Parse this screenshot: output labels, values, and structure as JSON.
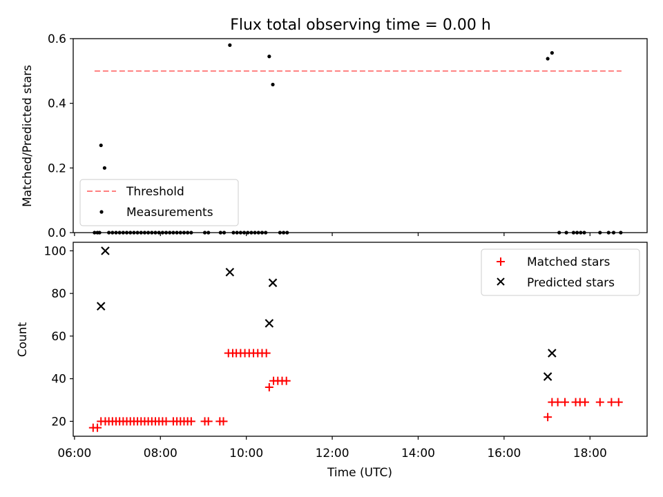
{
  "title": "Flux total observing time = 0.00 h",
  "colors": {
    "threshold": "#ff7f7f",
    "measurements": "#000000",
    "matched": "#ff0000",
    "predicted": "#000000"
  },
  "chart_data": [
    {
      "type": "scatter",
      "ylabel": "Matched/Predicted stars",
      "ylim": [
        0,
        0.6
      ],
      "yticks": [
        "0.0",
        "0.2",
        "0.4",
        "0.6"
      ],
      "xlim_hours": [
        5.97,
        19.33
      ],
      "grid": false,
      "legend_position": "lower-left",
      "legend": [
        "Threshold",
        "Measurements"
      ],
      "threshold": {
        "name": "Threshold",
        "value": 0.5,
        "x_range": [
          "06:28",
          "18:44"
        ]
      },
      "series": [
        {
          "name": "Measurements",
          "points": [
            [
              "06:28",
              0
            ],
            [
              "06:32",
              0
            ],
            [
              "06:35",
              0
            ],
            [
              "06:37",
              0.27
            ],
            [
              "06:42",
              0.2
            ],
            [
              "06:48",
              0
            ],
            [
              "06:53",
              0
            ],
            [
              "06:58",
              0
            ],
            [
              "07:03",
              0
            ],
            [
              "07:08",
              0
            ],
            [
              "07:13",
              0
            ],
            [
              "07:18",
              0
            ],
            [
              "07:23",
              0
            ],
            [
              "07:28",
              0
            ],
            [
              "07:33",
              0
            ],
            [
              "07:38",
              0
            ],
            [
              "07:43",
              0
            ],
            [
              "07:48",
              0
            ],
            [
              "07:53",
              0
            ],
            [
              "07:58",
              0
            ],
            [
              "08:03",
              0
            ],
            [
              "08:08",
              0
            ],
            [
              "08:13",
              0
            ],
            [
              "08:18",
              0
            ],
            [
              "08:23",
              0
            ],
            [
              "08:28",
              0
            ],
            [
              "08:33",
              0
            ],
            [
              "08:38",
              0
            ],
            [
              "08:43",
              0
            ],
            [
              "09:02",
              0
            ],
            [
              "09:07",
              0
            ],
            [
              "09:24",
              0
            ],
            [
              "09:29",
              0
            ],
            [
              "09:37",
              0.58
            ],
            [
              "09:42",
              0
            ],
            [
              "09:47",
              0
            ],
            [
              "09:52",
              0
            ],
            [
              "09:57",
              0
            ],
            [
              "10:02",
              0
            ],
            [
              "10:07",
              0
            ],
            [
              "10:12",
              0
            ],
            [
              "10:17",
              0
            ],
            [
              "10:22",
              0
            ],
            [
              "10:27",
              0
            ],
            [
              "10:32",
              0.545
            ],
            [
              "10:37",
              0.458
            ],
            [
              "10:47",
              0
            ],
            [
              "10:52",
              0
            ],
            [
              "10:57",
              0
            ],
            [
              "17:01",
              0.538
            ],
            [
              "17:07",
              0.556
            ],
            [
              "17:17",
              0
            ],
            [
              "17:27",
              0
            ],
            [
              "17:37",
              0
            ],
            [
              "17:42",
              0
            ],
            [
              "17:47",
              0
            ],
            [
              "17:52",
              0
            ],
            [
              "18:14",
              0
            ],
            [
              "18:26",
              0
            ],
            [
              "18:33",
              0
            ],
            [
              "18:43",
              0
            ]
          ]
        }
      ]
    },
    {
      "type": "scatter",
      "xlabel": "Time (UTC)",
      "ylabel": "Count",
      "xlim_hours": [
        5.97,
        19.33
      ],
      "xticks": [
        "06:00",
        "08:00",
        "10:00",
        "12:00",
        "14:00",
        "16:00",
        "18:00"
      ],
      "ylim": [
        13,
        104
      ],
      "yticks": [
        "20",
        "40",
        "60",
        "80",
        "100"
      ],
      "grid": false,
      "legend_position": "upper-right",
      "legend": [
        "Matched stars",
        "Predicted stars"
      ],
      "series": [
        {
          "name": "Matched stars",
          "marker": "+",
          "points": [
            [
              "06:26",
              17
            ],
            [
              "06:32",
              17
            ],
            [
              "06:37",
              20
            ],
            [
              "06:43",
              20
            ],
            [
              "06:48",
              20
            ],
            [
              "06:53",
              20
            ],
            [
              "06:58",
              20
            ],
            [
              "07:03",
              20
            ],
            [
              "07:08",
              20
            ],
            [
              "07:13",
              20
            ],
            [
              "07:18",
              20
            ],
            [
              "07:23",
              20
            ],
            [
              "07:28",
              20
            ],
            [
              "07:33",
              20
            ],
            [
              "07:38",
              20
            ],
            [
              "07:43",
              20
            ],
            [
              "07:48",
              20
            ],
            [
              "07:53",
              20
            ],
            [
              "07:58",
              20
            ],
            [
              "08:03",
              20
            ],
            [
              "08:08",
              20
            ],
            [
              "08:18",
              20
            ],
            [
              "08:23",
              20
            ],
            [
              "08:28",
              20
            ],
            [
              "08:33",
              20
            ],
            [
              "08:38",
              20
            ],
            [
              "08:43",
              20
            ],
            [
              "09:02",
              20
            ],
            [
              "09:07",
              20
            ],
            [
              "09:23",
              20
            ],
            [
              "09:28",
              20
            ],
            [
              "09:35",
              52
            ],
            [
              "09:41",
              52
            ],
            [
              "09:46",
              52
            ],
            [
              "09:52",
              52
            ],
            [
              "09:58",
              52
            ],
            [
              "10:04",
              52
            ],
            [
              "10:10",
              52
            ],
            [
              "10:16",
              52
            ],
            [
              "10:22",
              52
            ],
            [
              "10:28",
              52
            ],
            [
              "10:32",
              36
            ],
            [
              "10:38",
              39
            ],
            [
              "10:44",
              39
            ],
            [
              "10:50",
              39
            ],
            [
              "10:56",
              39
            ],
            [
              "17:01",
              22
            ],
            [
              "17:07",
              29
            ],
            [
              "17:15",
              29
            ],
            [
              "17:25",
              29
            ],
            [
              "17:40",
              29
            ],
            [
              "17:46",
              29
            ],
            [
              "17:53",
              29
            ],
            [
              "18:14",
              29
            ],
            [
              "18:30",
              29
            ],
            [
              "18:40",
              29
            ]
          ]
        },
        {
          "name": "Predicted stars",
          "marker": "x",
          "points": [
            [
              "06:37",
              74
            ],
            [
              "06:43",
              100
            ],
            [
              "09:37",
              90
            ],
            [
              "10:32",
              66
            ],
            [
              "10:37",
              85
            ],
            [
              "17:01",
              41
            ],
            [
              "17:07",
              52
            ]
          ]
        }
      ]
    }
  ]
}
